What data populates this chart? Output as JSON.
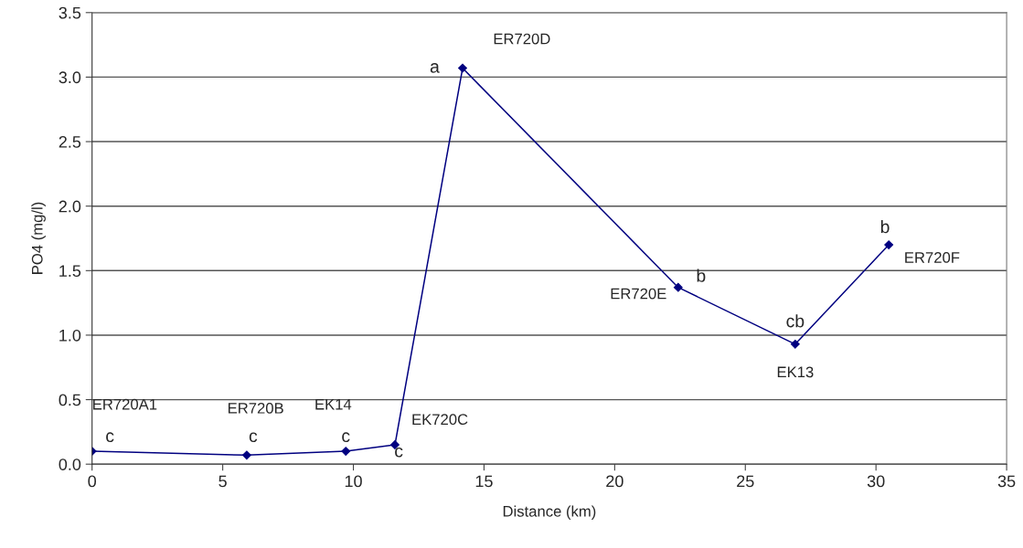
{
  "chart_data": {
    "type": "line",
    "xlabel": "Distance (km)",
    "ylabel": "PO4 (mg/l)",
    "x": [
      0,
      5.92,
      9.71,
      11.59,
      14.18,
      22.43,
      26.91,
      30.49
    ],
    "series": [
      {
        "color": "#000080",
        "values": [
          0.1,
          0.07,
          0.1,
          0.15,
          3.07,
          1.37,
          0.93,
          1.7
        ]
      }
    ],
    "xlim": [
      0,
      35
    ],
    "xticks": [
      0,
      5,
      10,
      15,
      20,
      25,
      30,
      35
    ],
    "ylim": [
      0,
      3.5
    ],
    "yticks": [
      {
        "value": 0,
        "label": "0.0"
      },
      {
        "value": 0.5,
        "label": "0.5"
      },
      {
        "value": 1,
        "label": "1.0"
      },
      {
        "value": 1.5,
        "label": "1.5"
      },
      {
        "value": 2,
        "label": "2.0"
      },
      {
        "value": 2.5,
        "label": "2.5"
      },
      {
        "value": 3,
        "label": "3.0"
      },
      {
        "value": 3.5,
        "label": "3.5"
      }
    ],
    "grid": "y",
    "marker": "diamond",
    "line_style": "solid",
    "annotations": [
      {
        "text": "ER720A1",
        "x": 0,
        "y": 0.1
      },
      {
        "text": "c",
        "x": 0,
        "y": 0.1
      },
      {
        "text": "ER720B",
        "x": 5.92,
        "y": 0.07
      },
      {
        "text": "c",
        "x": 5.92,
        "y": 0.07
      },
      {
        "text": "EK14",
        "x": 9.71,
        "y": 0.1
      },
      {
        "text": "c",
        "x": 9.71,
        "y": 0.1
      },
      {
        "text": "EK720C",
        "x": 11.59,
        "y": 0.15
      },
      {
        "text": "c",
        "x": 11.59,
        "y": 0.15
      },
      {
        "text": "ER720D",
        "x": 14.18,
        "y": 3.07
      },
      {
        "text": "a",
        "x": 14.18,
        "y": 3.07
      },
      {
        "text": "ER720E",
        "x": 22.43,
        "y": 1.37
      },
      {
        "text": "b",
        "x": 22.43,
        "y": 1.37
      },
      {
        "text": "EK13",
        "x": 26.91,
        "y": 0.93
      },
      {
        "text": "cb",
        "x": 26.91,
        "y": 0.93
      },
      {
        "text": "ER720F",
        "x": 30.49,
        "y": 1.7
      },
      {
        "text": "b",
        "x": 30.49,
        "y": 1.7
      }
    ]
  }
}
